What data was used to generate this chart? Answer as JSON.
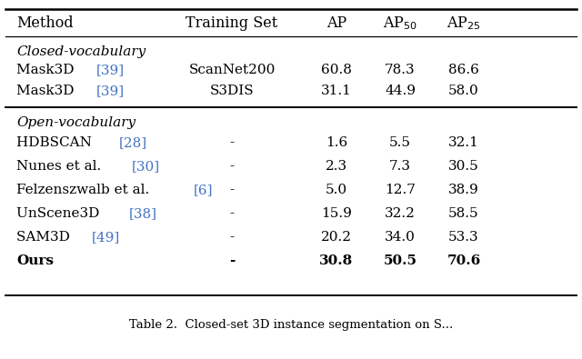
{
  "caption": "Table 2.  Closed-set 3D instance segmentation on S...",
  "col_x_pts": [
    18,
    255,
    370,
    440,
    510
  ],
  "col_align": [
    "left",
    "center",
    "center",
    "center",
    "center"
  ],
  "section_closed": "Closed-vocabulary",
  "section_open": "Open-vocabulary",
  "rows_closed": [
    {
      "method": "Mask3D ",
      "ref": "[39]",
      "training": "ScanNet200",
      "ap": "60.8",
      "ap50": "78.3",
      "ap25": "86.6",
      "bold": false
    },
    {
      "method": "Mask3D ",
      "ref": "[39]",
      "training": "S3DIS",
      "ap": "31.1",
      "ap50": "44.9",
      "ap25": "58.0",
      "bold": false
    }
  ],
  "rows_open": [
    {
      "method": "HDBSCAN ",
      "ref": "[28]",
      "training": "-",
      "ap": "1.6",
      "ap50": "5.5",
      "ap25": "32.1",
      "bold": false
    },
    {
      "method": "Nunes et al. ",
      "ref": "[30]",
      "training": "-",
      "ap": "2.3",
      "ap50": "7.3",
      "ap25": "30.5",
      "bold": false
    },
    {
      "method": "Felzenszwalb et al. ",
      "ref": "[6]",
      "training": "-",
      "ap": "5.0",
      "ap50": "12.7",
      "ap25": "38.9",
      "bold": false
    },
    {
      "method": "UnScene3D ",
      "ref": "[38]",
      "training": "-",
      "ap": "15.9",
      "ap50": "32.2",
      "ap25": "58.5",
      "bold": false
    },
    {
      "method": "SAM3D ",
      "ref": "[49]",
      "training": "-",
      "ap": "20.2",
      "ap50": "34.0",
      "ap25": "53.3",
      "bold": false
    },
    {
      "method": "Ours",
      "ref": "",
      "training": "-",
      "ap": "30.8",
      "ap50": "50.5",
      "ap25": "70.6",
      "bold": true
    }
  ],
  "ref_color": "#4472C4",
  "text_color": "#000000",
  "bg_color": "#ffffff",
  "font_size": 11.0,
  "header_font_size": 11.5,
  "caption_font_size": 9.5,
  "fig_width": 6.4,
  "fig_height": 3.95,
  "dpi": 100
}
